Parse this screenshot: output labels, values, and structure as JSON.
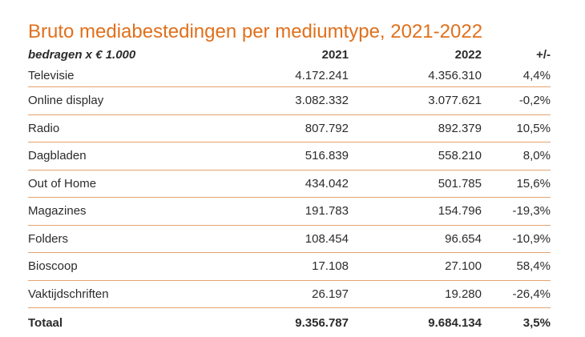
{
  "title": "Bruto mediabestedingen per mediumtype, 2021-2022",
  "table": {
    "headers": [
      "bedragen x € 1.000",
      "2021",
      "2022",
      "+/-"
    ],
    "rows": [
      {
        "label": "Televisie",
        "y2021": "4.172.241",
        "y2022": "4.356.310",
        "diff": "4,4%"
      },
      {
        "label": "Online display",
        "y2021": "3.082.332",
        "y2022": "3.077.621",
        "diff": "-0,2%"
      },
      {
        "label": "Radio",
        "y2021": "807.792",
        "y2022": "892.379",
        "diff": "10,5%"
      },
      {
        "label": "Dagbladen",
        "y2021": "516.839",
        "y2022": "558.210",
        "diff": "8,0%"
      },
      {
        "label": "Out of Home",
        "y2021": "434.042",
        "y2022": "501.785",
        "diff": "15,6%"
      },
      {
        "label": "Magazines",
        "y2021": "191.783",
        "y2022": "154.796",
        "diff": "-19,3%"
      },
      {
        "label": "Folders",
        "y2021": "108.454",
        "y2022": "96.654",
        "diff": "-10,9%"
      },
      {
        "label": "Bioscoop",
        "y2021": "17.108",
        "y2022": "27.100",
        "diff": "58,4%"
      },
      {
        "label": "Vaktijdschriften",
        "y2021": "26.197",
        "y2022": "19.280",
        "diff": "-26,4%"
      }
    ],
    "total": {
      "label": "Totaal",
      "y2021": "9.356.787",
      "y2022": "9.684.134",
      "diff": "3,5%"
    }
  },
  "colors": {
    "accent": "#e0701c",
    "rule": "#e6a36e",
    "text": "#2b2b2b"
  }
}
